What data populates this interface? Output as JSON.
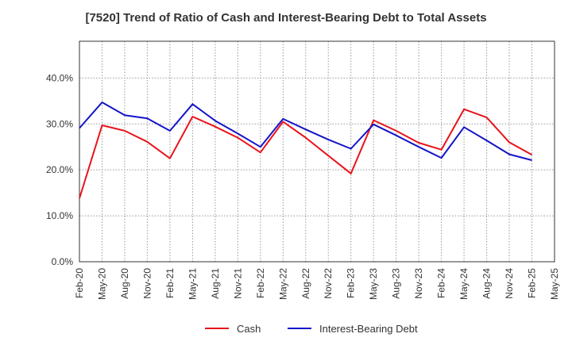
{
  "chart_data": {
    "type": "line",
    "title": "[7520]  Trend of Ratio of Cash and Interest-Bearing Debt to Total Assets",
    "xlabel": "",
    "ylabel": "",
    "ylim": [
      0,
      48
    ],
    "yticks": [
      0,
      10,
      20,
      30,
      40
    ],
    "ytick_labels": [
      "0.0%",
      "10.0%",
      "20.0%",
      "30.0%",
      "40.0%"
    ],
    "categories": [
      "Feb-20",
      "May-20",
      "Aug-20",
      "Nov-20",
      "Feb-21",
      "May-21",
      "Aug-21",
      "Nov-21",
      "Feb-22",
      "May-22",
      "Aug-22",
      "Nov-22",
      "Feb-23",
      "May-23",
      "Aug-23",
      "Nov-23",
      "Feb-24",
      "May-24",
      "Aug-24",
      "Nov-24",
      "Feb-25",
      "May-25"
    ],
    "series": [
      {
        "name": "Cash",
        "color": "#e8141b",
        "values": [
          13.8,
          29.7,
          28.5,
          26.1,
          22.5,
          31.6,
          29.4,
          27.0,
          23.8,
          30.5,
          27.0,
          23.1,
          19.2,
          30.8,
          28.5,
          25.9,
          24.4,
          33.2,
          31.4,
          26.0,
          23.3,
          null
        ]
      },
      {
        "name": "Interest-Bearing Debt",
        "color": "#1414c8",
        "values": [
          29.1,
          34.7,
          31.9,
          31.2,
          28.5,
          34.3,
          30.7,
          27.9,
          25.0,
          31.1,
          28.8,
          26.6,
          24.6,
          29.9,
          27.5,
          25.0,
          22.6,
          29.3,
          26.4,
          23.4,
          22.1,
          null
        ]
      }
    ],
    "grid": true,
    "legend_position": "bottom"
  }
}
